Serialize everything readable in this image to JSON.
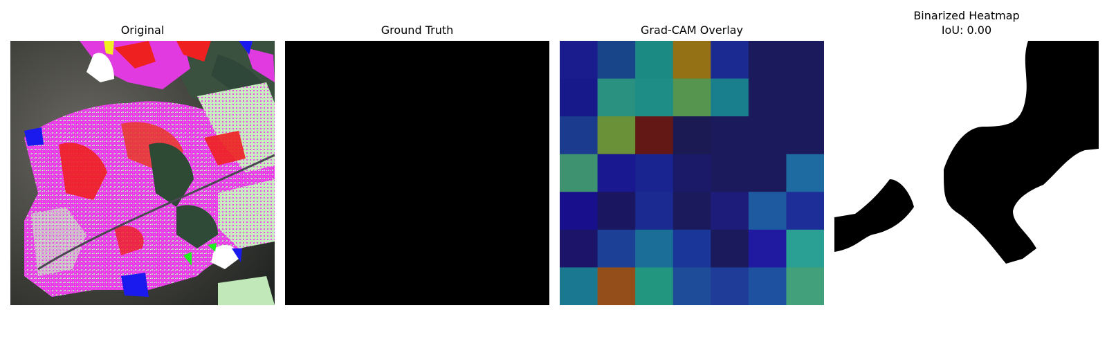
{
  "panels": [
    {
      "title": "Original"
    },
    {
      "title": "Ground Truth"
    },
    {
      "title": "Grad-CAM Overlay"
    },
    {
      "title": "Binarized Heatmap",
      "subtitle": "IoU: 0.00"
    }
  ],
  "gradcam": {
    "rows": 7,
    "cols": 7,
    "cells": [
      [
        "#1a1c8e",
        "#184489",
        "#1b8a82",
        "#947114",
        "#1a2a90",
        "#1b1a5c",
        "#1b1a5c"
      ],
      [
        "#17188a",
        "#2a9080",
        "#1d8d86",
        "#55954f",
        "#1a7f8d",
        "#1b1a5c",
        "#1b1a5c"
      ],
      [
        "#1a3b8e",
        "#6a9038",
        "#641816",
        "#1b1a52",
        "#1b1a5c",
        "#1b1a5c",
        "#1b1a5c"
      ],
      [
        "#3e9270",
        "#1a1890",
        "#1a2490",
        "#1b1a68",
        "#1b1a5c",
        "#1b1a5c",
        "#1e6ba2"
      ],
      [
        "#170f8c",
        "#1a1660",
        "#1a2a90",
        "#1b1a5c",
        "#1e1c7a",
        "#1e5aa0",
        "#1e2e98"
      ],
      [
        "#1b1468",
        "#1b4096",
        "#1a6e98",
        "#1a3698",
        "#1b1a5c",
        "#201aa0",
        "#2aa094"
      ],
      [
        "#1a7890",
        "#944e1a",
        "#22967e",
        "#1e4c98",
        "#1e3c98",
        "#1e52a0",
        "#42a07a"
      ]
    ]
  },
  "ground_truth": {
    "fill": "#000000"
  },
  "binarized": {
    "foreground": "#000000",
    "background": "#ffffff"
  }
}
